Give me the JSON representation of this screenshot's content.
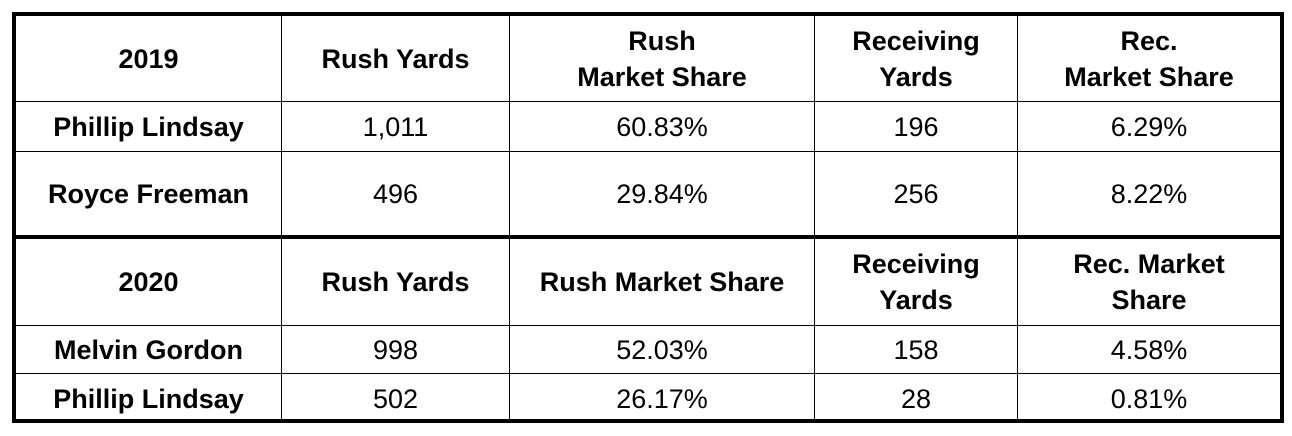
{
  "sections": [
    {
      "header": [
        "2019",
        "Rush Yards",
        "Rush\nMarket Share",
        "Receiving\nYards",
        "Rec.\nMarket Share"
      ],
      "rows": [
        [
          "Phillip Lindsay",
          "1,011",
          "60.83%",
          "196",
          "6.29%"
        ],
        [
          "Royce Freeman",
          "496",
          "29.84%",
          "256",
          "8.22%"
        ]
      ]
    },
    {
      "header": [
        "2020",
        "Rush Yards",
        "Rush Market Share",
        "Receiving\nYards",
        "Rec. Market\nShare"
      ],
      "rows": [
        [
          "Melvin Gordon",
          "998",
          "52.03%",
          "158",
          "4.58%"
        ],
        [
          "Phillip Lindsay",
          "502",
          "26.17%",
          "28",
          "0.81%"
        ]
      ]
    }
  ]
}
